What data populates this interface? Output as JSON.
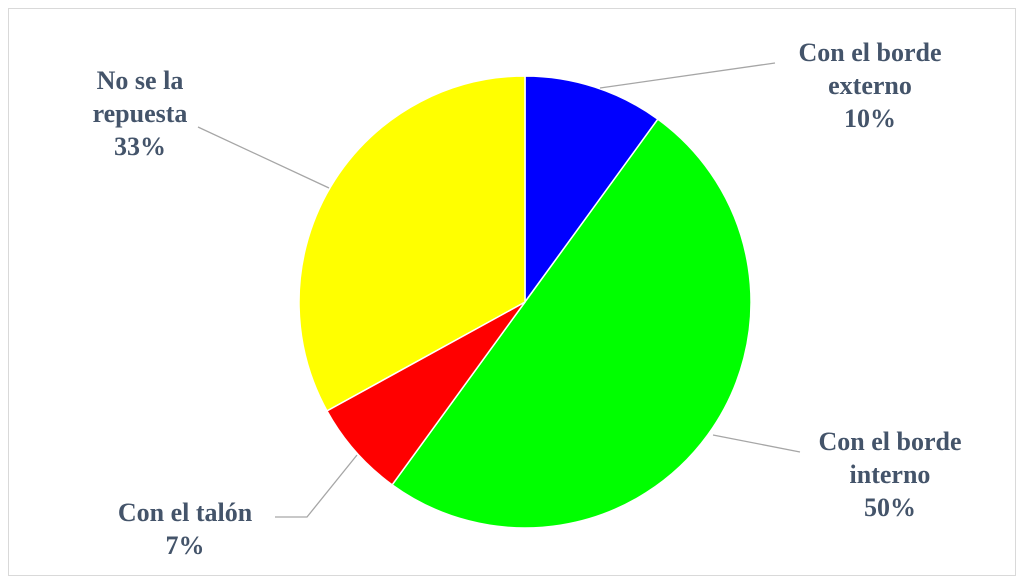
{
  "chart_data": {
    "type": "pie",
    "title": "",
    "legend": "none",
    "slices": [
      {
        "label_lines": [
          "Con el borde",
          "externo"
        ],
        "value": 10,
        "percent_label": "10%",
        "color": "#0000ff"
      },
      {
        "label_lines": [
          "Con el borde",
          "interno"
        ],
        "value": 50,
        "percent_label": "50%",
        "color": "#00ff00"
      },
      {
        "label_lines": [
          "Con el talón"
        ],
        "value": 7,
        "percent_label": "7%",
        "color": "#ff0000"
      },
      {
        "label_lines": [
          "No se la",
          "repuesta"
        ],
        "value": 33,
        "percent_label": "33%",
        "color": "#ffff00"
      }
    ]
  }
}
